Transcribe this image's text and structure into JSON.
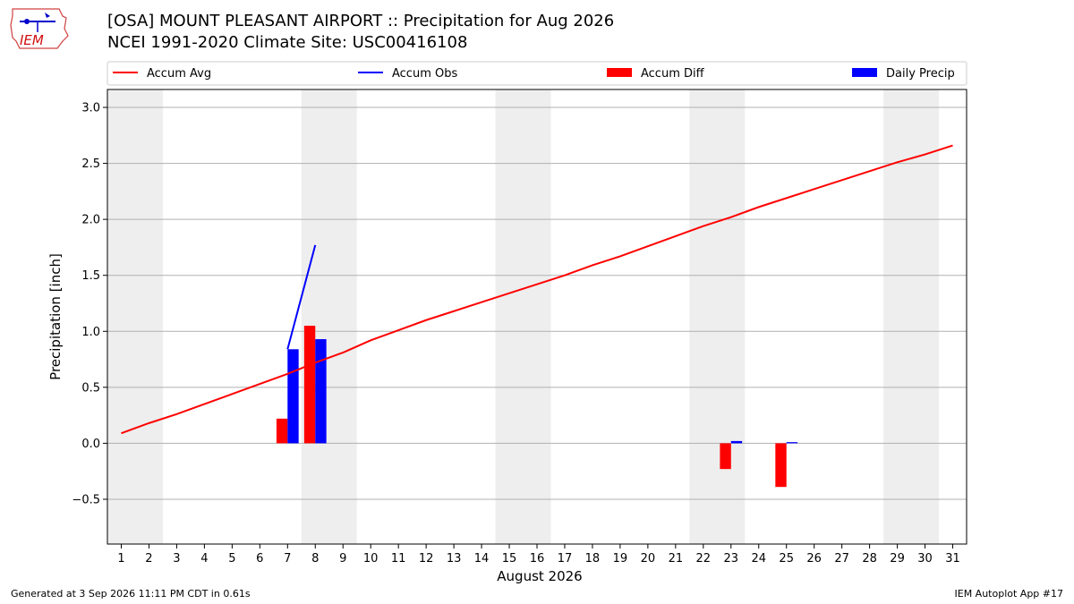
{
  "logo": {
    "text": "IEM"
  },
  "header": {
    "title_line1": "[OSA] MOUNT PLEASANT AIRPORT :: Precipitation for Aug 2026",
    "title_line2": "NCEI 1991-2020 Climate Site: USC00416108"
  },
  "footer": {
    "left": "Generated at 3 Sep 2026 11:11 PM CDT in 0.61s",
    "right": "IEM Autoplot App #17"
  },
  "colors": {
    "avg": "#ff0000",
    "obs": "#0000ff",
    "diff": "#ff0000",
    "daily": "#0000ff",
    "weekend": "#eeeeee",
    "grid": "#b0b0b0"
  },
  "chart_data": {
    "type": "bar",
    "xlabel": "August 2026",
    "ylabel": "Precipitation [inch]",
    "xlim": [
      0.5,
      31.5
    ],
    "ylim": [
      -0.9,
      3.16
    ],
    "yticks": [
      -0.5,
      0.0,
      0.5,
      1.0,
      1.5,
      2.0,
      2.5,
      3.0
    ],
    "ytick_labels": [
      "−0.5",
      "0.0",
      "0.5",
      "1.0",
      "1.5",
      "2.0",
      "2.5",
      "3.0"
    ],
    "days": [
      1,
      2,
      3,
      4,
      5,
      6,
      7,
      8,
      9,
      10,
      11,
      12,
      13,
      14,
      15,
      16,
      17,
      18,
      19,
      20,
      21,
      22,
      23,
      24,
      25,
      26,
      27,
      28,
      29,
      30,
      31
    ],
    "weekend_spans": [
      [
        1,
        2
      ],
      [
        8,
        9
      ],
      [
        15,
        16
      ],
      [
        22,
        23
      ],
      [
        29,
        30
      ]
    ],
    "grid": "horizontal",
    "legend": {
      "placement": "top",
      "items": [
        {
          "label": "Accum Avg",
          "kind": "line",
          "color": "#ff0000"
        },
        {
          "label": "Accum Obs",
          "kind": "line",
          "color": "#0000ff"
        },
        {
          "label": "Accum Diff",
          "kind": "bar",
          "color": "#ff0000"
        },
        {
          "label": "Daily Precip",
          "kind": "bar",
          "color": "#0000ff"
        }
      ]
    },
    "series": [
      {
        "name": "Accum Avg",
        "type": "line",
        "x": [
          1,
          2,
          3,
          4,
          5,
          6,
          7,
          8,
          9,
          10,
          11,
          12,
          13,
          14,
          15,
          16,
          17,
          18,
          19,
          20,
          21,
          22,
          23,
          24,
          25,
          26,
          27,
          28,
          29,
          30,
          31
        ],
        "values": [
          0.09,
          0.18,
          0.26,
          0.35,
          0.44,
          0.53,
          0.62,
          0.72,
          0.81,
          0.92,
          1.01,
          1.1,
          1.18,
          1.26,
          1.34,
          1.42,
          1.5,
          1.59,
          1.67,
          1.76,
          1.85,
          1.94,
          2.02,
          2.11,
          2.19,
          2.27,
          2.35,
          2.43,
          2.51,
          2.58,
          2.66
        ]
      },
      {
        "name": "Accum Obs",
        "type": "line",
        "x": [
          7,
          8
        ],
        "values": [
          0.84,
          1.77
        ]
      },
      {
        "name": "Accum Diff",
        "type": "bar",
        "x": [
          7,
          8,
          23,
          25
        ],
        "values": [
          0.22,
          1.05,
          -0.23,
          -0.39
        ]
      },
      {
        "name": "Daily Precip",
        "type": "bar",
        "x": [
          7,
          8,
          23,
          25
        ],
        "values": [
          0.84,
          0.93,
          0.02,
          0.01
        ]
      }
    ]
  }
}
